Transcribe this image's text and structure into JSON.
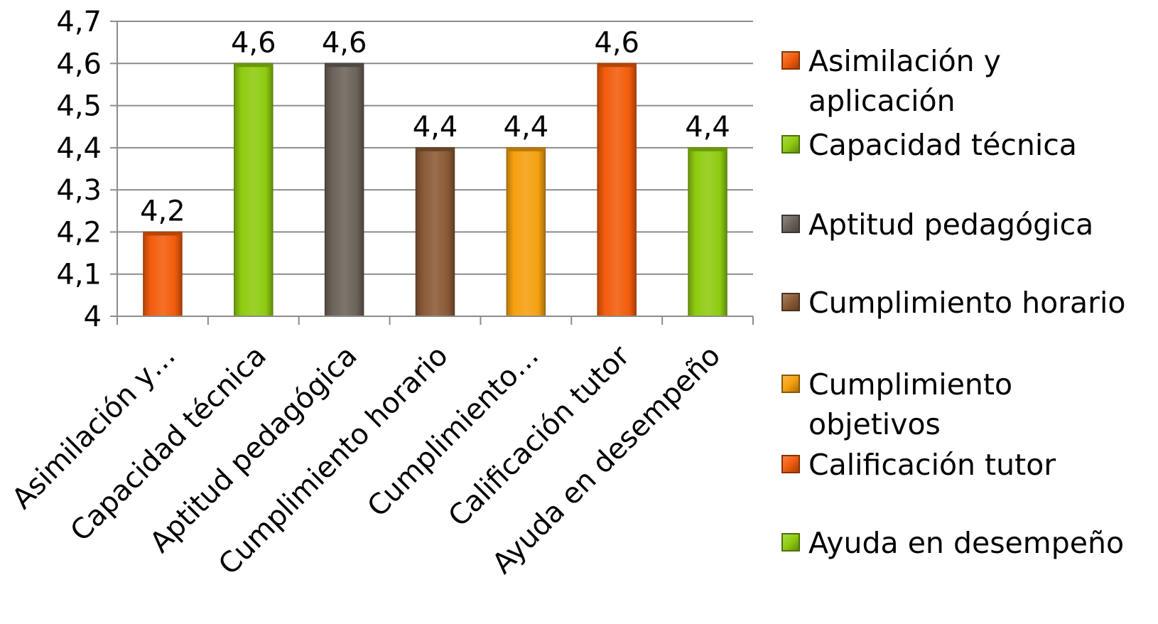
{
  "chart_data": {
    "type": "bar",
    "title": "",
    "xlabel": "",
    "ylabel": "",
    "ylim": [
      4,
      4.7
    ],
    "yticks": [
      4,
      4.1,
      4.2,
      4.3,
      4.4,
      4.5,
      4.6,
      4.7
    ],
    "ytick_labels": [
      "4",
      "4,1",
      "4,2",
      "4,3",
      "4,4",
      "4,5",
      "4,6",
      "4,7"
    ],
    "grid": true,
    "legend_position": "right",
    "categories": [
      "Asimilación y…",
      "Capacidad técnica",
      "Aptitud pedagógica",
      "Cumplimiento horario",
      "Cumplimiento…",
      "Calificación tutor",
      "Ayuda en desempeño"
    ],
    "values": [
      4.2,
      4.6,
      4.6,
      4.4,
      4.4,
      4.6,
      4.4
    ],
    "value_labels": [
      "4,2",
      "4,6",
      "4,6",
      "4,4",
      "4,4",
      "4,6",
      "4,4"
    ],
    "colors": [
      "#f25c0c",
      "#8ecb10",
      "#6b635a",
      "#8a5a35",
      "#f5a00f",
      "#f25c0c",
      "#8ecb10"
    ],
    "legend": [
      {
        "label": "Asimilación y aplicación",
        "color": "#f25c0c"
      },
      {
        "label": "Capacidad técnica",
        "color": "#8ecb10"
      },
      {
        "label": "Aptitud pedagógica",
        "color": "#6b635a"
      },
      {
        "label": "Cumplimiento horario",
        "color": "#8a5a35"
      },
      {
        "label": "Cumplimiento objetivos",
        "color": "#f5a00f"
      },
      {
        "label": "Calificación tutor",
        "color": "#f25c0c"
      },
      {
        "label": "Ayuda en desempeño",
        "color": "#8ecb10"
      }
    ]
  }
}
